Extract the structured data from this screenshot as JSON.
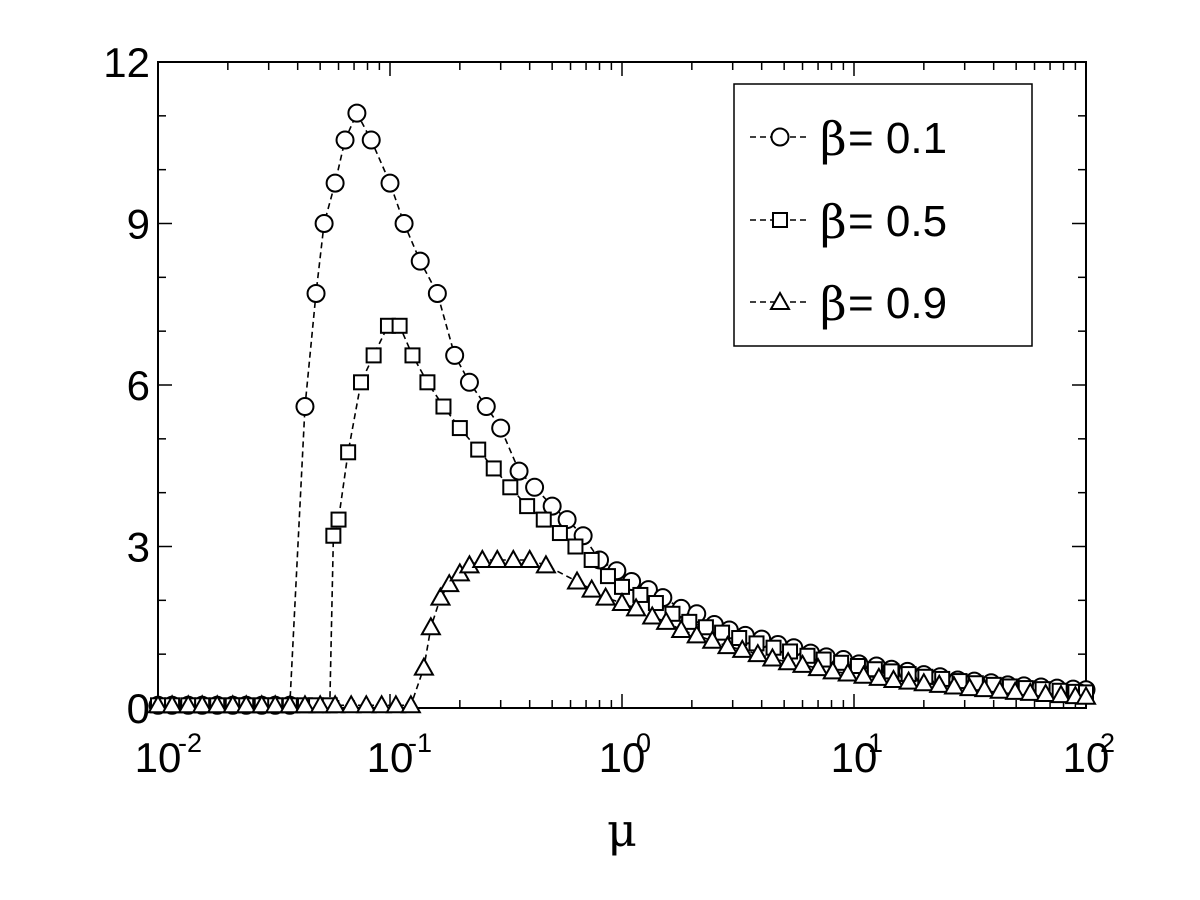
{
  "chart_data": {
    "type": "line",
    "title": "",
    "xlabel": "μ",
    "ylabel": "",
    "xscale": "log",
    "xlim": [
      0.01,
      100
    ],
    "ylim": [
      0,
      12
    ],
    "yticks": [
      "0",
      "3",
      "6",
      "9",
      "12"
    ],
    "xticks": [
      {
        "base": "10",
        "exp": "-2"
      },
      {
        "base": "10",
        "exp": "-1"
      },
      {
        "base": "10",
        "exp": "0"
      },
      {
        "base": "10",
        "exp": "1"
      },
      {
        "base": "10",
        "exp": "2"
      }
    ],
    "grid": false,
    "legend_position": "top-right",
    "line_style": "dashed",
    "series": [
      {
        "name": "β = 0.1",
        "legend_symbol": "β",
        "legend_value": " = 0.1",
        "marker": "circle",
        "points": [
          [
            0.01,
            0.05
          ],
          [
            0.0115,
            0.05
          ],
          [
            0.0135,
            0.05
          ],
          [
            0.0155,
            0.05
          ],
          [
            0.018,
            0.05
          ],
          [
            0.021,
            0.05
          ],
          [
            0.024,
            0.05
          ],
          [
            0.028,
            0.05
          ],
          [
            0.032,
            0.05
          ],
          [
            0.037,
            0.05
          ],
          [
            0.043,
            5.6
          ],
          [
            0.048,
            7.7
          ],
          [
            0.052,
            9.0
          ],
          [
            0.058,
            9.75
          ],
          [
            0.064,
            10.55
          ],
          [
            0.072,
            11.05
          ],
          [
            0.083,
            10.55
          ],
          [
            0.1,
            9.75
          ],
          [
            0.115,
            9.0
          ],
          [
            0.135,
            8.3
          ],
          [
            0.16,
            7.7
          ],
          [
            0.19,
            6.55
          ],
          [
            0.22,
            6.05
          ],
          [
            0.26,
            5.6
          ],
          [
            0.3,
            5.2
          ],
          [
            0.36,
            4.4
          ],
          [
            0.42,
            4.1
          ],
          [
            0.5,
            3.75
          ],
          [
            0.58,
            3.5
          ],
          [
            0.68,
            3.2
          ],
          [
            0.8,
            2.75
          ],
          [
            0.95,
            2.55
          ],
          [
            1.1,
            2.35
          ],
          [
            1.3,
            2.2
          ],
          [
            1.5,
            2.05
          ],
          [
            1.8,
            1.85
          ],
          [
            2.1,
            1.75
          ],
          [
            2.5,
            1.55
          ],
          [
            2.9,
            1.45
          ],
          [
            3.4,
            1.35
          ],
          [
            4.0,
            1.28
          ],
          [
            4.7,
            1.18
          ],
          [
            5.5,
            1.12
          ],
          [
            6.5,
            1.02
          ],
          [
            7.6,
            0.95
          ],
          [
            9.0,
            0.9
          ],
          [
            10.5,
            0.82
          ],
          [
            12.5,
            0.78
          ],
          [
            14.5,
            0.72
          ],
          [
            17.0,
            0.68
          ],
          [
            20.0,
            0.62
          ],
          [
            23.5,
            0.58
          ],
          [
            28.0,
            0.52
          ],
          [
            33.0,
            0.5
          ],
          [
            39.0,
            0.47
          ],
          [
            46.0,
            0.43
          ],
          [
            54.0,
            0.41
          ],
          [
            64.0,
            0.39
          ],
          [
            75.0,
            0.37
          ],
          [
            88.0,
            0.35
          ],
          [
            100.0,
            0.34
          ]
        ]
      },
      {
        "name": "β = 0.5",
        "legend_symbol": "β",
        "legend_value": " = 0.5",
        "marker": "square",
        "points": [
          [
            0.01,
            0.05
          ],
          [
            0.0115,
            0.05
          ],
          [
            0.0135,
            0.05
          ],
          [
            0.0155,
            0.05
          ],
          [
            0.018,
            0.05
          ],
          [
            0.021,
            0.05
          ],
          [
            0.024,
            0.05
          ],
          [
            0.028,
            0.05
          ],
          [
            0.032,
            0.05
          ],
          [
            0.037,
            0.05
          ],
          [
            0.043,
            0.05
          ],
          [
            0.048,
            0.05
          ],
          [
            0.055,
            0.05
          ],
          [
            0.057,
            3.2
          ],
          [
            0.06,
            3.5
          ],
          [
            0.066,
            4.75
          ],
          [
            0.075,
            6.05
          ],
          [
            0.085,
            6.55
          ],
          [
            0.098,
            7.1
          ],
          [
            0.11,
            7.1
          ],
          [
            0.125,
            6.55
          ],
          [
            0.145,
            6.05
          ],
          [
            0.17,
            5.6
          ],
          [
            0.2,
            5.2
          ],
          [
            0.24,
            4.8
          ],
          [
            0.28,
            4.45
          ],
          [
            0.33,
            4.1
          ],
          [
            0.39,
            3.75
          ],
          [
            0.46,
            3.5
          ],
          [
            0.54,
            3.25
          ],
          [
            0.63,
            3.0
          ],
          [
            0.74,
            2.75
          ],
          [
            0.87,
            2.45
          ],
          [
            1.0,
            2.25
          ],
          [
            1.2,
            2.1
          ],
          [
            1.4,
            1.95
          ],
          [
            1.65,
            1.75
          ],
          [
            1.95,
            1.6
          ],
          [
            2.3,
            1.5
          ],
          [
            2.7,
            1.4
          ],
          [
            3.2,
            1.3
          ],
          [
            3.8,
            1.2
          ],
          [
            4.5,
            1.12
          ],
          [
            5.3,
            1.05
          ],
          [
            6.3,
            0.97
          ],
          [
            7.4,
            0.9
          ],
          [
            8.8,
            0.84
          ],
          [
            10.4,
            0.78
          ],
          [
            12.3,
            0.72
          ],
          [
            14.5,
            0.68
          ],
          [
            17.2,
            0.63
          ],
          [
            20.3,
            0.58
          ],
          [
            24.0,
            0.54
          ],
          [
            28.5,
            0.5
          ],
          [
            33.5,
            0.46
          ],
          [
            40.0,
            0.43
          ],
          [
            47.0,
            0.4
          ],
          [
            55.0,
            0.37
          ],
          [
            65.0,
            0.35
          ],
          [
            77.0,
            0.32
          ],
          [
            90.0,
            0.3
          ],
          [
            100.0,
            0.29
          ]
        ]
      },
      {
        "name": "β = 0.9",
        "legend_symbol": "β",
        "legend_value": " = 0.9",
        "marker": "triangle",
        "points": [
          [
            0.01,
            0.05
          ],
          [
            0.0115,
            0.05
          ],
          [
            0.0135,
            0.05
          ],
          [
            0.0155,
            0.05
          ],
          [
            0.018,
            0.05
          ],
          [
            0.021,
            0.05
          ],
          [
            0.024,
            0.05
          ],
          [
            0.028,
            0.05
          ],
          [
            0.032,
            0.05
          ],
          [
            0.037,
            0.05
          ],
          [
            0.043,
            0.05
          ],
          [
            0.05,
            0.05
          ],
          [
            0.058,
            0.05
          ],
          [
            0.068,
            0.05
          ],
          [
            0.079,
            0.05
          ],
          [
            0.092,
            0.05
          ],
          [
            0.106,
            0.05
          ],
          [
            0.123,
            0.05
          ],
          [
            0.14,
            0.75
          ],
          [
            0.15,
            1.5
          ],
          [
            0.165,
            2.05
          ],
          [
            0.18,
            2.3
          ],
          [
            0.2,
            2.5
          ],
          [
            0.22,
            2.65
          ],
          [
            0.25,
            2.75
          ],
          [
            0.29,
            2.75
          ],
          [
            0.34,
            2.75
          ],
          [
            0.4,
            2.75
          ],
          [
            0.47,
            2.65
          ],
          [
            0.64,
            2.35
          ],
          [
            0.74,
            2.2
          ],
          [
            0.85,
            2.05
          ],
          [
            1.0,
            1.95
          ],
          [
            1.15,
            1.85
          ],
          [
            1.35,
            1.7
          ],
          [
            1.55,
            1.6
          ],
          [
            1.8,
            1.45
          ],
          [
            2.1,
            1.35
          ],
          [
            2.45,
            1.25
          ],
          [
            2.85,
            1.15
          ],
          [
            3.3,
            1.08
          ],
          [
            3.85,
            1.0
          ],
          [
            4.45,
            0.92
          ],
          [
            5.2,
            0.85
          ],
          [
            6.0,
            0.8
          ],
          [
            7.0,
            0.74
          ],
          [
            8.1,
            0.68
          ],
          [
            9.4,
            0.64
          ],
          [
            11.0,
            0.6
          ],
          [
            12.8,
            0.56
          ],
          [
            14.8,
            0.52
          ],
          [
            17.2,
            0.49
          ],
          [
            20.0,
            0.46
          ],
          [
            23.3,
            0.43
          ],
          [
            27.0,
            0.4
          ],
          [
            31.5,
            0.37
          ],
          [
            36.5,
            0.35
          ],
          [
            42.5,
            0.32
          ],
          [
            49.5,
            0.3
          ],
          [
            57.5,
            0.28
          ],
          [
            67.0,
            0.26
          ],
          [
            78.0,
            0.24
          ],
          [
            90.0,
            0.22
          ],
          [
            100.0,
            0.21
          ]
        ]
      }
    ]
  }
}
